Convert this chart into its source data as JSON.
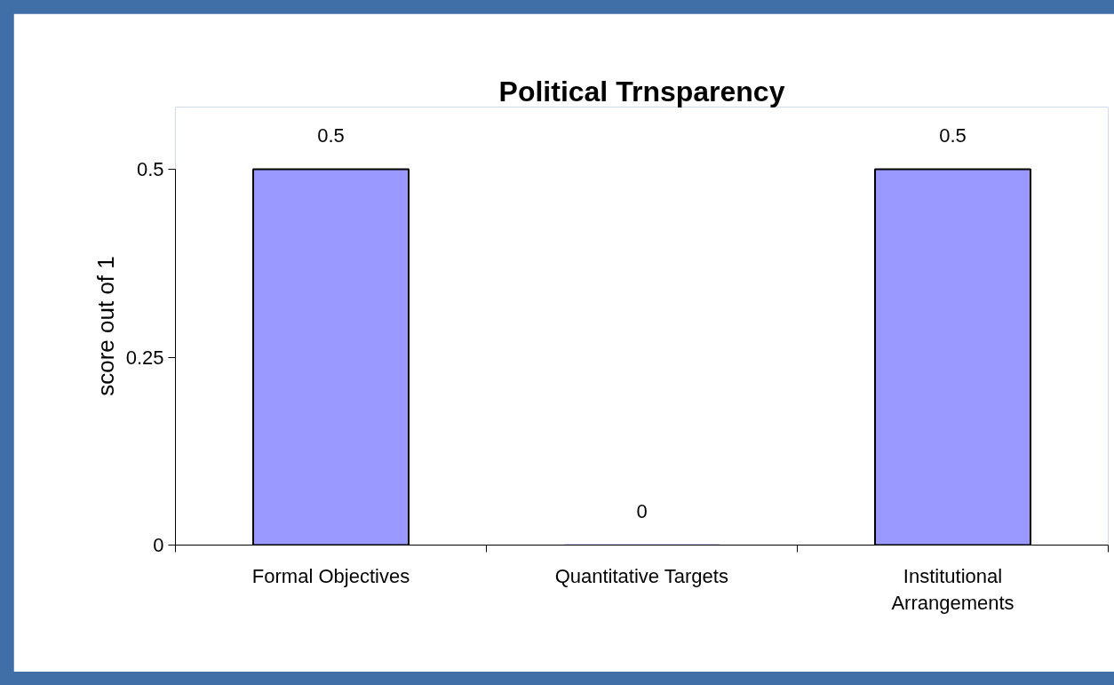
{
  "chart_data": {
    "type": "bar",
    "title": "Political Trnsparency",
    "ylabel": "score out of 1",
    "categories": [
      "Formal Objectives",
      "Quantitative Targets",
      "Institutional Arrangements"
    ],
    "values": [
      0.5,
      0,
      0.5
    ],
    "color": "#9999ff",
    "ylim": [
      0,
      0.5
    ],
    "yticks": [
      0,
      0.25,
      0.5
    ],
    "grid": false,
    "data_labels": true
  }
}
